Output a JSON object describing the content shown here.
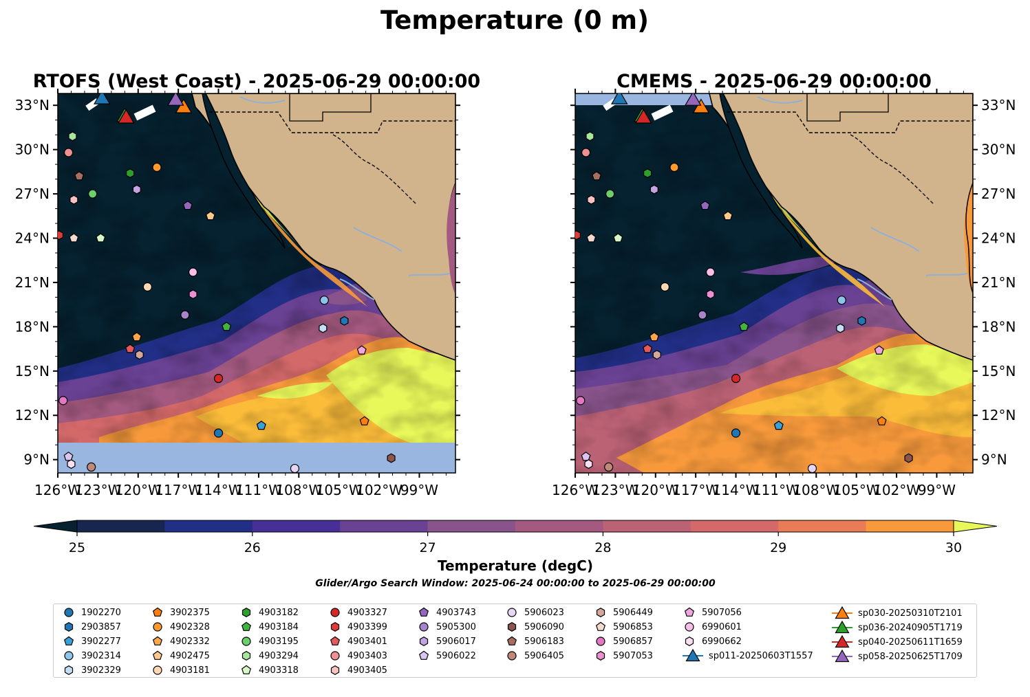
{
  "suptitle": "Temperature (0 m)",
  "panels": [
    {
      "title": "RTOFS (West Coast) - 2025-06-29 00:00:00",
      "y_ticks_side": "left"
    },
    {
      "title": "CMEMS - 2025-06-29 00:00:00",
      "y_ticks_side": "right"
    }
  ],
  "colors": {
    "ocean_cold": "#06212f",
    "land": "#d2b48c",
    "missing": "#99b6e0",
    "river": "#8fb0d2",
    "colormap": [
      "#06212f",
      "#17264f",
      "#222f87",
      "#462f96",
      "#6a4294",
      "#89548b",
      "#a45a80",
      "#bb6275",
      "#d4696a",
      "#e97c56",
      "#f89a3c",
      "#fbbc3a",
      "#e8f75a"
    ]
  },
  "chart_data": {
    "type": "map",
    "extent": {
      "lon_min": -126,
      "lon_max": -96.3,
      "lat_min": 8.1,
      "lat_max": 33.8
    },
    "x_ticks": [
      {
        "value": -126,
        "label": "126°W"
      },
      {
        "value": -123,
        "label": "123°W"
      },
      {
        "value": -120,
        "label": "120°W"
      },
      {
        "value": -117,
        "label": "117°W"
      },
      {
        "value": -114,
        "label": "114°W"
      },
      {
        "value": -111,
        "label": "111°W"
      },
      {
        "value": -108,
        "label": "108°W"
      },
      {
        "value": -105,
        "label": "105°W"
      },
      {
        "value": -102,
        "label": "102°W"
      },
      {
        "value": -99,
        "label": "99°W"
      }
    ],
    "y_ticks": [
      {
        "value": 33,
        "label": "33°N"
      },
      {
        "value": 30,
        "label": "30°N"
      },
      {
        "value": 27,
        "label": "27°N"
      },
      {
        "value": 24,
        "label": "24°N"
      },
      {
        "value": 21,
        "label": "21°N"
      },
      {
        "value": 18,
        "label": "18°N"
      },
      {
        "value": 15,
        "label": "15°N"
      },
      {
        "value": 12,
        "label": "12°N"
      },
      {
        "value": 9,
        "label": "9°N"
      }
    ],
    "colorbar": {
      "label": "Temperature (degC)",
      "min": 25,
      "max": 30,
      "step": 0.5,
      "extend": "both",
      "ticks": [
        {
          "value": 25,
          "label": "25"
        },
        {
          "value": 26,
          "label": "26"
        },
        {
          "value": 27,
          "label": "27"
        },
        {
          "value": 28,
          "label": "28"
        },
        {
          "value": 29,
          "label": "29"
        },
        {
          "value": 30,
          "label": "30"
        }
      ]
    },
    "search_window": "Glider/Argo Search Window: 2025-06-24 00:00:00 to 2025-06-29 00:00:00",
    "floats": [
      {
        "id": "1902270",
        "marker": "circle",
        "color": "#1f77b4",
        "lon": -114.0,
        "lat": 10.8
      },
      {
        "id": "2903857",
        "marker": "hexagon",
        "color": "#1f77b4",
        "lon": -104.6,
        "lat": 18.4
      },
      {
        "id": "3902277",
        "marker": "pentagon",
        "color": "#3ca0d8",
        "lon": -110.8,
        "lat": 11.3
      },
      {
        "id": "3902314",
        "marker": "circle",
        "color": "#8fc4ea",
        "lon": -106.1,
        "lat": 19.8
      },
      {
        "id": "3902329",
        "marker": "hexagon",
        "color": "#c3def5",
        "lon": -106.2,
        "lat": 17.9
      },
      {
        "id": "3902375",
        "marker": "pentagon",
        "color": "#ff7f0e",
        "lon": -103.1,
        "lat": 11.6
      },
      {
        "id": "4902328",
        "marker": "circle",
        "color": "#ff9a2e",
        "lon": -118.6,
        "lat": 28.8
      },
      {
        "id": "4902332",
        "marker": "pentagon",
        "color": "#ffa64d",
        "lon": -120.1,
        "lat": 17.3
      },
      {
        "id": "4902475",
        "marker": "pentagon",
        "color": "#ffc98a",
        "lon": -114.6,
        "lat": 25.5
      },
      {
        "id": "4903181",
        "marker": "circle",
        "color": "#ffd9b3",
        "lon": -119.3,
        "lat": 20.7
      },
      {
        "id": "4903182",
        "marker": "hexagon",
        "color": "#2ca02c",
        "lon": -120.6,
        "lat": 28.4
      },
      {
        "id": "4903184",
        "marker": "pentagon",
        "color": "#41b341",
        "lon": -113.4,
        "lat": 18.0
      },
      {
        "id": "4903195",
        "marker": "circle",
        "color": "#6bcf6b",
        "lon": -123.4,
        "lat": 27.0
      },
      {
        "id": "4903294",
        "marker": "hexagon",
        "color": "#a8e6a0",
        "lon": -124.9,
        "lat": 30.9
      },
      {
        "id": "4903318",
        "marker": "pentagon",
        "color": "#d7f7c9",
        "lon": -122.8,
        "lat": 24.0
      },
      {
        "id": "4903327",
        "marker": "circle",
        "color": "#d62728",
        "lon": -114.0,
        "lat": 14.5
      },
      {
        "id": "4903399",
        "marker": "hexagon",
        "color": "#e03a3a",
        "lon": -125.9,
        "lat": 24.2
      },
      {
        "id": "4903401",
        "marker": "pentagon",
        "color": "#e45959",
        "lon": -120.6,
        "lat": 16.5
      },
      {
        "id": "4903403",
        "marker": "circle",
        "color": "#f09090",
        "lon": -125.2,
        "lat": 29.8
      },
      {
        "id": "4903405",
        "marker": "hexagon",
        "color": "#f8c2c2",
        "lon": -124.8,
        "lat": 26.6
      },
      {
        "id": "4903743",
        "marker": "pentagon",
        "color": "#9467bd",
        "lon": -116.3,
        "lat": 26.2
      },
      {
        "id": "5905300",
        "marker": "circle",
        "color": "#a784cc",
        "lon": -116.5,
        "lat": 18.8
      },
      {
        "id": "5906017",
        "marker": "hexagon",
        "color": "#c2a5e0",
        "lon": -120.1,
        "lat": 27.3
      },
      {
        "id": "5906022",
        "marker": "pentagon",
        "color": "#dac6f0",
        "lon": -125.2,
        "lat": 9.2
      },
      {
        "id": "5906023",
        "marker": "circle",
        "color": "#e6d6f5",
        "lon": -108.3,
        "lat": 8.4
      },
      {
        "id": "5906090",
        "marker": "hexagon",
        "color": "#8c564b",
        "lon": -101.1,
        "lat": 9.1
      },
      {
        "id": "5906183",
        "marker": "pentagon",
        "color": "#a66e60",
        "lon": -124.4,
        "lat": 28.2
      },
      {
        "id": "5906405",
        "marker": "circle",
        "color": "#c08878",
        "lon": -123.5,
        "lat": 8.5
      },
      {
        "id": "5906449",
        "marker": "hexagon",
        "color": "#d4a99c",
        "lon": -119.9,
        "lat": 16.1
      },
      {
        "id": "5906853",
        "marker": "pentagon",
        "color": "#f3d9d0",
        "lon": -124.8,
        "lat": 24.0
      },
      {
        "id": "5906857",
        "marker": "circle",
        "color": "#e377c2",
        "lon": -125.6,
        "lat": 13.0
      },
      {
        "id": "5907053",
        "marker": "hexagon",
        "color": "#ea8fd0",
        "lon": -115.9,
        "lat": 20.2
      },
      {
        "id": "5907056",
        "marker": "pentagon",
        "color": "#f0a6dc",
        "lon": -103.3,
        "lat": 16.4
      },
      {
        "id": "6990601",
        "marker": "circle",
        "color": "#f6bfe6",
        "lon": -115.9,
        "lat": 21.7
      },
      {
        "id": "6990662",
        "marker": "hexagon",
        "color": "#fbdff2",
        "lon": -125.0,
        "lat": 8.7
      }
    ],
    "gliders": [
      {
        "id": "sp011-20250603T1557",
        "color": "#1f77b4",
        "lon": -122.7,
        "lat": 33.4
      },
      {
        "id": "sp030-20250310T2101",
        "color": "#ff7f0e",
        "lon": -116.6,
        "lat": 32.8
      },
      {
        "id": "sp036-20240905T1719",
        "color": "#2ca02c",
        "lon": -121.0,
        "lat": 32.2
      },
      {
        "id": "sp040-20250611T1659",
        "color": "#d62728",
        "lon": -120.9,
        "lat": 32.1
      },
      {
        "id": "sp058-20250625T1709",
        "color": "#9467bd",
        "lon": -117.2,
        "lat": 33.3
      }
    ]
  }
}
